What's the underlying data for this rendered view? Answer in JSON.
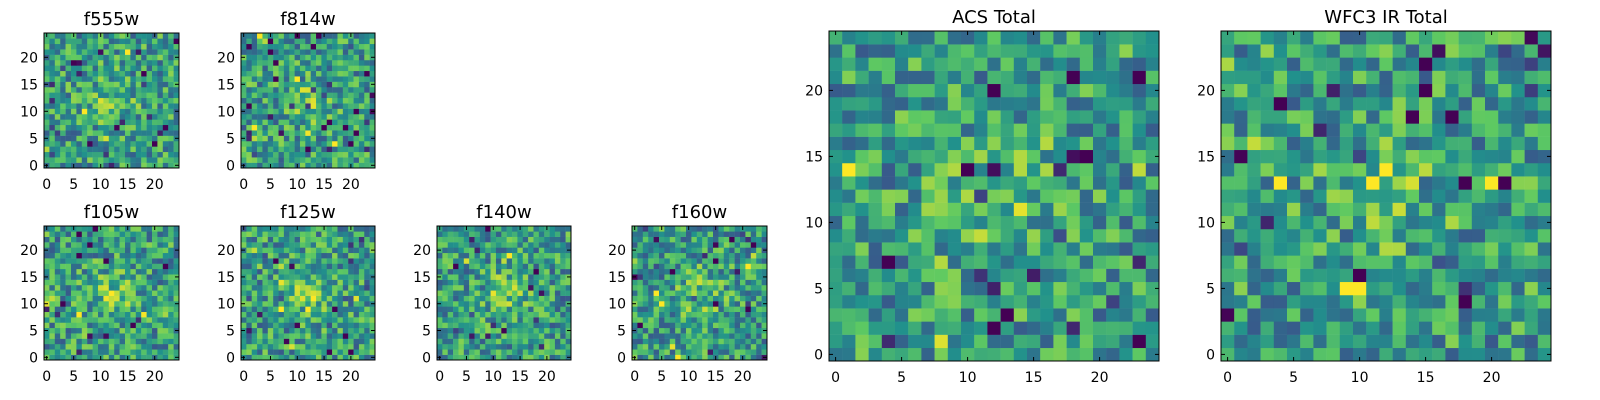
{
  "figure": {
    "description_free": true
  },
  "chart_data": [
    {
      "type": "heatmap",
      "title": "f555w",
      "xlabel": "",
      "ylabel": "",
      "xlim": [
        -0.5,
        24.5
      ],
      "ylim": [
        -0.5,
        24.5
      ],
      "xticks": [
        0,
        5,
        10,
        15,
        20
      ],
      "yticks": [
        0,
        5,
        10,
        15,
        20
      ],
      "colormap": [
        "#440154",
        "#3b528b",
        "#21918c",
        "#5ec962",
        "#fde725"
      ],
      "grid": false,
      "seed": 101
    },
    {
      "type": "heatmap",
      "title": "f814w",
      "xlabel": "",
      "ylabel": "",
      "xlim": [
        -0.5,
        24.5
      ],
      "ylim": [
        -0.5,
        24.5
      ],
      "xticks": [
        0,
        5,
        10,
        15,
        20
      ],
      "yticks": [
        0,
        5,
        10,
        15,
        20
      ],
      "colormap": [
        "#440154",
        "#3b528b",
        "#21918c",
        "#5ec962",
        "#fde725"
      ],
      "grid": false,
      "seed": 202
    },
    {
      "type": "heatmap",
      "title": "f105w",
      "xlabel": "",
      "ylabel": "",
      "xlim": [
        -0.5,
        24.5
      ],
      "ylim": [
        -0.5,
        24.5
      ],
      "xticks": [
        0,
        5,
        10,
        15,
        20
      ],
      "yticks": [
        0,
        5,
        10,
        15,
        20
      ],
      "colormap": [
        "#440154",
        "#3b528b",
        "#21918c",
        "#5ec962",
        "#fde725"
      ],
      "grid": false,
      "seed": 303
    },
    {
      "type": "heatmap",
      "title": "f125w",
      "xlabel": "",
      "ylabel": "",
      "xlim": [
        -0.5,
        24.5
      ],
      "ylim": [
        -0.5,
        24.5
      ],
      "xticks": [
        0,
        5,
        10,
        15,
        20
      ],
      "yticks": [
        0,
        5,
        10,
        15,
        20
      ],
      "colormap": [
        "#440154",
        "#3b528b",
        "#21918c",
        "#5ec962",
        "#fde725"
      ],
      "grid": false,
      "seed": 404
    },
    {
      "type": "heatmap",
      "title": "f140w",
      "xlabel": "",
      "ylabel": "",
      "xlim": [
        -0.5,
        24.5
      ],
      "ylim": [
        -0.5,
        24.5
      ],
      "xticks": [
        0,
        5,
        10,
        15,
        20
      ],
      "yticks": [
        0,
        5,
        10,
        15,
        20
      ],
      "colormap": [
        "#440154",
        "#3b528b",
        "#21918c",
        "#5ec962",
        "#fde725"
      ],
      "grid": false,
      "seed": 505
    },
    {
      "type": "heatmap",
      "title": "f160w",
      "xlabel": "",
      "ylabel": "",
      "xlim": [
        -0.5,
        24.5
      ],
      "ylim": [
        -0.5,
        24.5
      ],
      "xticks": [
        0,
        5,
        10,
        15,
        20
      ],
      "yticks": [
        0,
        5,
        10,
        15,
        20
      ],
      "colormap": [
        "#440154",
        "#3b528b",
        "#21918c",
        "#5ec962",
        "#fde725"
      ],
      "grid": false,
      "seed": 606
    },
    {
      "type": "heatmap",
      "title": "ACS Total",
      "xlabel": "",
      "ylabel": "",
      "xlim": [
        -0.5,
        24.5
      ],
      "ylim": [
        -0.5,
        24.5
      ],
      "xticks": [
        0,
        5,
        10,
        15,
        20
      ],
      "yticks": [
        0,
        5,
        10,
        15,
        20
      ],
      "colormap": [
        "#440154",
        "#3b528b",
        "#21918c",
        "#5ec962",
        "#fde725"
      ],
      "grid": false,
      "seed": 707
    },
    {
      "type": "heatmap",
      "title": "WFC3 IR Total",
      "xlabel": "",
      "ylabel": "",
      "xlim": [
        -0.5,
        24.5
      ],
      "ylim": [
        -0.5,
        24.5
      ],
      "xticks": [
        0,
        5,
        10,
        15,
        20
      ],
      "yticks": [
        0,
        5,
        10,
        15,
        20
      ],
      "colormap": [
        "#440154",
        "#3b528b",
        "#21918c",
        "#5ec962",
        "#fde725"
      ],
      "grid": false,
      "seed": 808
    }
  ]
}
